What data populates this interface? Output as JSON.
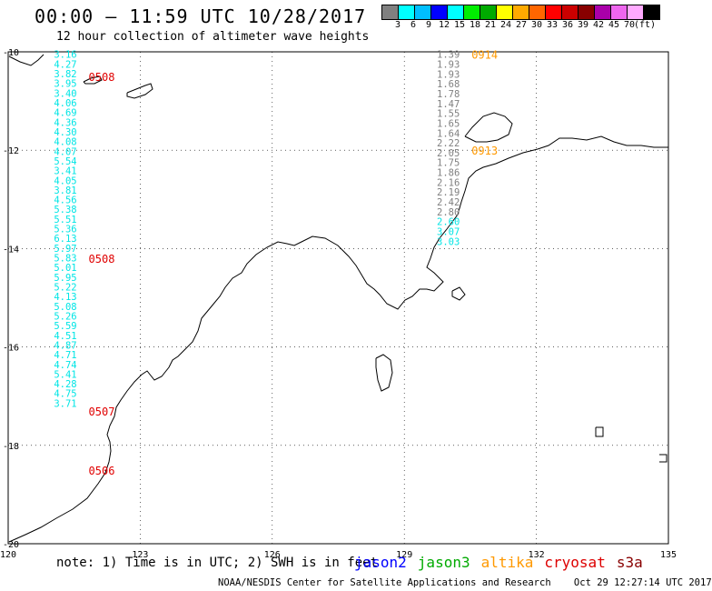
{
  "title": "00:00 – 11:59 UTC 10/28/2017",
  "subtitle": "12 hour collection of altimeter wave heights",
  "color_scale": {
    "labels": [
      "3",
      "6",
      "9",
      "12",
      "15",
      "18",
      "21",
      "24",
      "27",
      "30",
      "33",
      "36",
      "39",
      "42",
      "45",
      "70",
      "(ft)"
    ],
    "colors": [
      "#808080",
      "#00ffff",
      "#00bfff",
      "#0000ff",
      "#00ffff",
      "#00ee00",
      "#00aa00",
      "#ffff00",
      "#ffaa00",
      "#ff6600",
      "#ff0000",
      "#cc0000",
      "#880000",
      "#aa00aa",
      "#ee66ee",
      "#ffaaff",
      "#000000"
    ]
  },
  "axes": {
    "lon_ticks": [
      "120",
      "123",
      "126",
      "129",
      "132",
      "135"
    ],
    "lat_ticks": [
      "-10",
      "-12",
      "-14",
      "-16",
      "-18",
      "-20"
    ],
    "lon_range": [
      120,
      135
    ],
    "lat_range": [
      -20,
      -10
    ]
  },
  "tracks": [
    {
      "color": "#00e5e5",
      "lon": 121.3,
      "lat_start": -10.05,
      "lat_step": 0.197,
      "values": [
        "3.16",
        "4.27",
        "3.82",
        "3.95",
        "3.40",
        "4.06",
        "4.69",
        "4.36",
        "4.30",
        "4.08",
        "4.07",
        "5.54",
        "3.41",
        "4.05",
        "3.81",
        "4.56",
        "5.38",
        "5.51",
        "5.36",
        "6.13",
        "5.97",
        "5.83",
        "5.01",
        "5.95",
        "5.22",
        "4.13",
        "5.08",
        "5.26",
        "5.59",
        "4.51",
        "4.87",
        "4.71",
        "4.74",
        "5.41",
        "4.28",
        "4.75",
        "3.71"
      ],
      "time_labels": [
        {
          "text": "0508",
          "lat": -10.5
        },
        {
          "text": "0508",
          "lat": -14.2
        },
        {
          "text": "0507",
          "lat": -17.3
        },
        {
          "text": "0506",
          "lat": -18.5
        }
      ],
      "time_color": "#e00000"
    },
    {
      "color": "#808080",
      "lon": 130.0,
      "lat_start": -10.05,
      "lat_step": -0.2,
      "values": [
        "1.39",
        "1.93",
        "1.93",
        "1.68",
        "1.78",
        "1.47",
        "1.55",
        "1.65",
        "1.64",
        "2.22",
        "2.05",
        "1.75",
        "1.86",
        "2.16",
        "2.19",
        "2.42",
        "2.80",
        "2.60",
        "3.07",
        "3.03"
      ],
      "cyan_from": 17,
      "time_labels": [
        {
          "text": "0914",
          "lat": -10.05
        },
        {
          "text": "0913",
          "lat": -12.0
        }
      ],
      "time_color": "#ff9900"
    }
  ],
  "legend": {
    "note": "note: 1) Time is in UTC; 2) SWH is in feet",
    "missions": [
      {
        "name": "jason2",
        "color": "#0000ff"
      },
      {
        "name": "jason3",
        "color": "#00aa00"
      },
      {
        "name": "altika",
        "color": "#ff9900"
      },
      {
        "name": "cryosat",
        "color": "#dd0000"
      },
      {
        "name": "s3a",
        "color": "#880000"
      }
    ]
  },
  "credit": "NOAA/NESDIS Center for Satellite Applications and Research    Oct 29 12:27:14 UTC 2017"
}
